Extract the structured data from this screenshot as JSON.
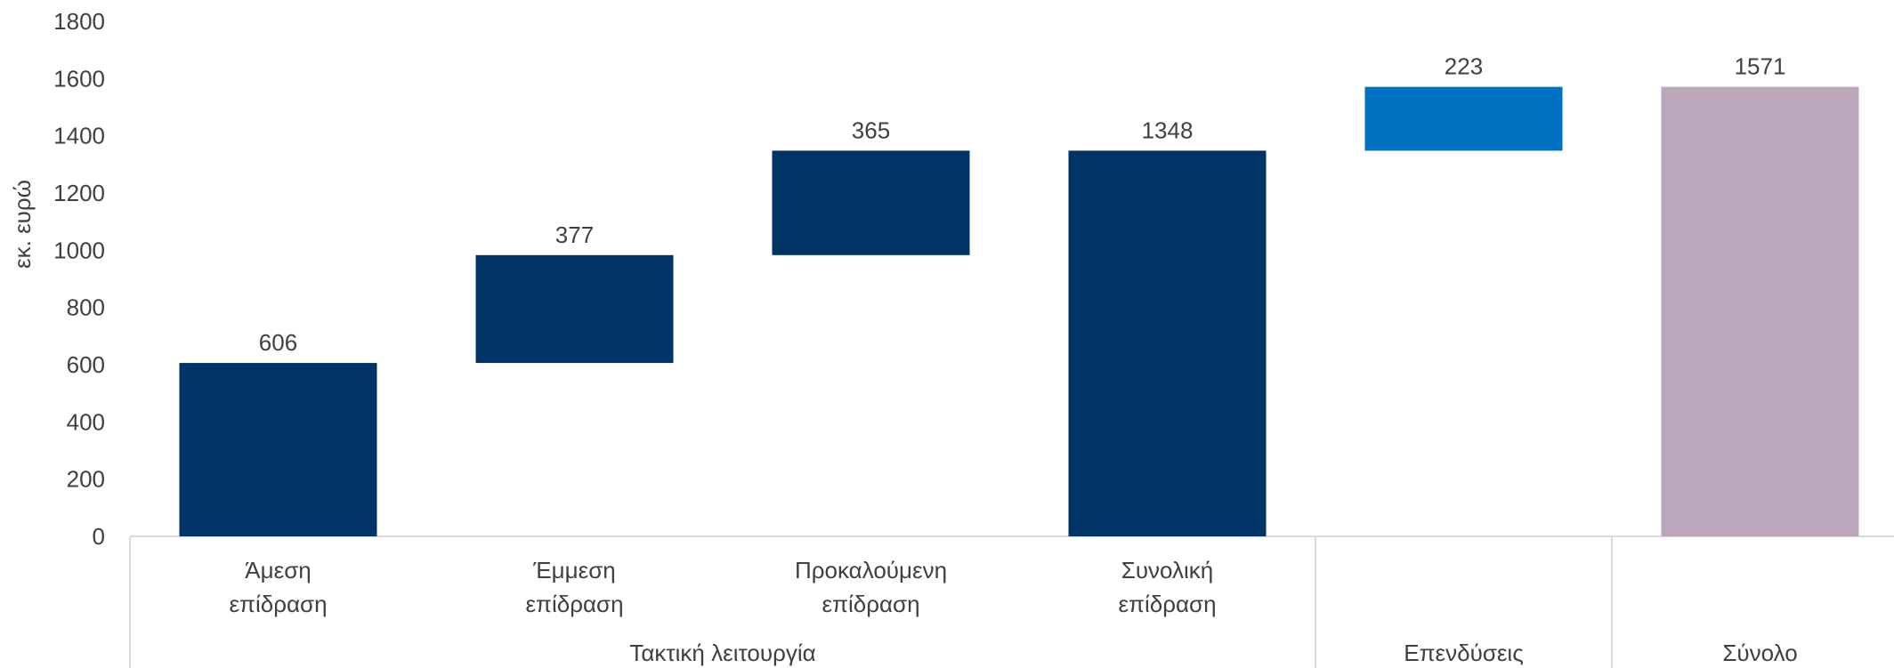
{
  "chart_data": {
    "type": "bar",
    "subtype": "waterfall",
    "ylabel": "εκ. ευρώ",
    "xlabel": "",
    "ylim": [
      0,
      1800
    ],
    "yticks": [
      0,
      200,
      400,
      600,
      800,
      1000,
      1200,
      1400,
      1600,
      1800
    ],
    "grid": false,
    "bars": [
      {
        "label_lines": [
          "Άμεση",
          "επίδραση"
        ],
        "base": 0,
        "value": 606,
        "data_label": "606",
        "color": "#003366"
      },
      {
        "label_lines": [
          "Έμμεση",
          "επίδραση"
        ],
        "base": 606,
        "value": 377,
        "data_label": "377",
        "color": "#003366"
      },
      {
        "label_lines": [
          "Προκαλούμενη",
          "επίδραση"
        ],
        "base": 983,
        "value": 365,
        "data_label": "365",
        "color": "#003366"
      },
      {
        "label_lines": [
          "Συνολική",
          "επίδραση"
        ],
        "base": 0,
        "value": 1348,
        "data_label": "1348",
        "color": "#003366"
      },
      {
        "label_lines": [],
        "base": 1348,
        "value": 223,
        "data_label": "223",
        "color": "#0070C0"
      },
      {
        "label_lines": [],
        "base": 0,
        "value": 1571,
        "data_label": "1571",
        "color": "#BCA6BC"
      }
    ],
    "groups": [
      {
        "label": "Τακτική λειτουργία",
        "from": 0,
        "to": 3
      },
      {
        "label": "Επενδύσεις",
        "from": 4,
        "to": 4
      },
      {
        "label": "Σύνολο",
        "from": 5,
        "to": 5
      }
    ]
  }
}
